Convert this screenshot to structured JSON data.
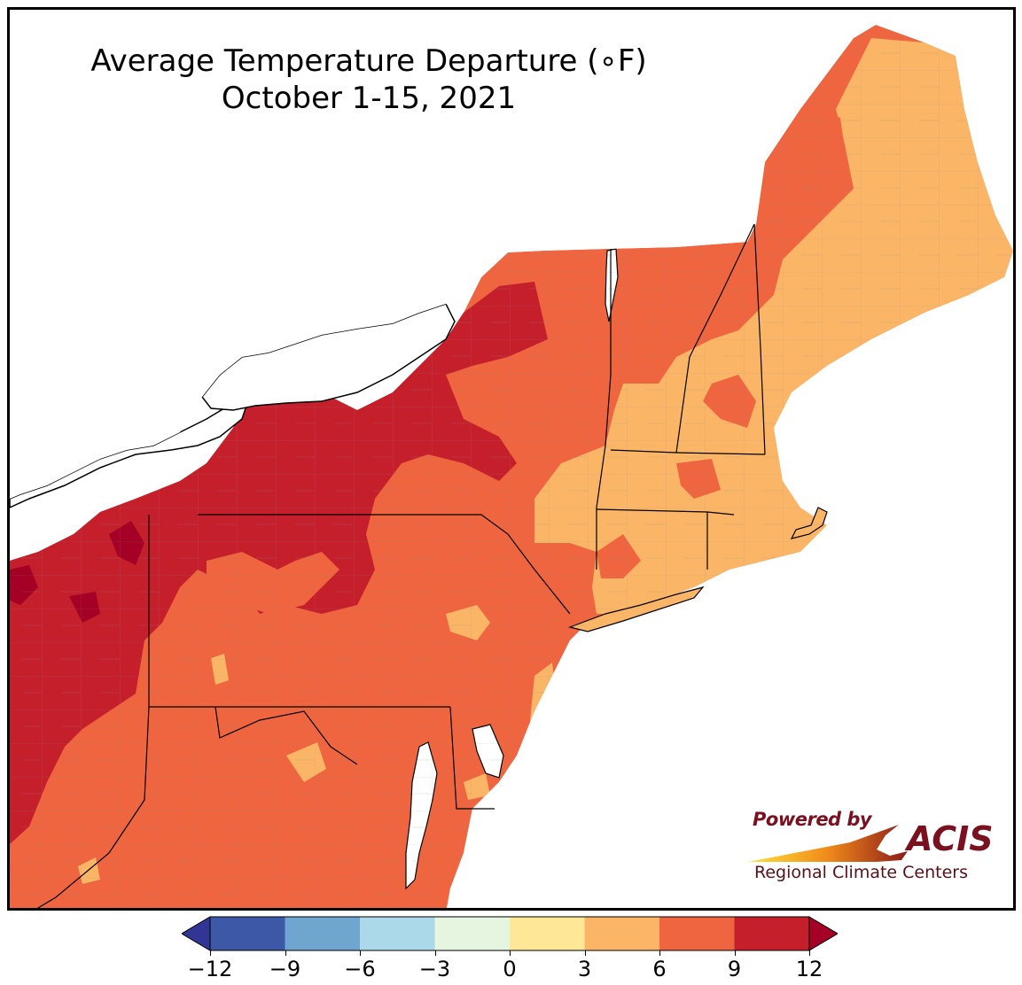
{
  "title": {
    "line1": "Average Temperature Departure (∘F)",
    "line2": "October 1-15, 2021"
  },
  "map": {
    "region": "Northeast United States",
    "background_color": "#ffffff",
    "water_color": "#ffffff",
    "state_border_color": "#000000",
    "county_border_color": "#9a9a9a",
    "dominant_class": "6 to 9",
    "classes_present": [
      "3 to 6",
      "6 to 9",
      "9 to 12",
      "> 12"
    ]
  },
  "logo": {
    "powered_by": "Powered by",
    "name": "ACIS",
    "tagline": "Regional Climate Centers"
  },
  "legend": {
    "ticks": [
      "−12",
      "−9",
      "−6",
      "−3",
      "0",
      "3",
      "6",
      "9",
      "12"
    ],
    "bins": [
      {
        "range": "< -12",
        "color": "#313695"
      },
      {
        "range": "-12 to -9",
        "color": "#3c58a6"
      },
      {
        "range": "-9 to -6",
        "color": "#6fa6cf"
      },
      {
        "range": "-6 to -3",
        "color": "#abd9e9"
      },
      {
        "range": "-3 to 0",
        "color": "#e6f5e0"
      },
      {
        "range": "0 to 3",
        "color": "#fee898"
      },
      {
        "range": "3 to 6",
        "color": "#fbb566"
      },
      {
        "range": "6 to 9",
        "color": "#ee653f"
      },
      {
        "range": "9 to 12",
        "color": "#c41f2b"
      },
      {
        "range": "> 12",
        "color": "#a50026"
      }
    ]
  }
}
